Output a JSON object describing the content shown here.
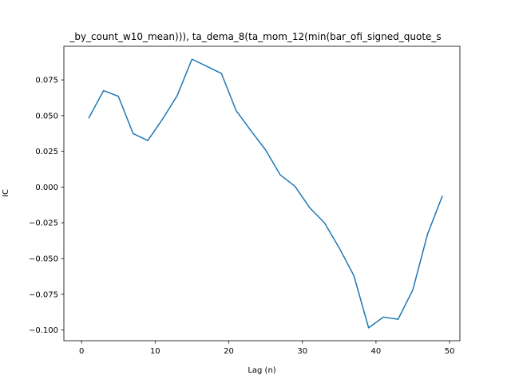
{
  "chart_data": {
    "type": "line",
    "title": "_by_count_w10_mean))), ta_dema_8(ta_mom_12(min(bar_ofi_signed_quote_s",
    "xlabel": "Lag (n)",
    "ylabel": "IC",
    "xlim": [
      -2.4,
      51.4
    ],
    "ylim": [
      -0.1075,
      0.0985
    ],
    "xticks": [
      0,
      10,
      20,
      30,
      40,
      50
    ],
    "yticks": [
      -0.1,
      -0.075,
      -0.05,
      -0.025,
      0.0,
      0.025,
      0.05,
      0.075
    ],
    "ytick_labels": [
      "−0.100",
      "−0.075",
      "−0.050",
      "−0.025",
      "0.000",
      "0.025",
      "0.050",
      "0.075"
    ],
    "grid": false,
    "series": [
      {
        "color": "#1f77b4",
        "x": [
          1,
          3,
          5,
          7,
          9,
          11,
          13,
          15,
          17,
          19,
          21,
          23,
          25,
          27,
          29,
          31,
          33,
          35,
          37,
          39,
          41,
          43,
          45,
          47,
          49
        ],
        "y": [
          0.0485,
          0.0675,
          0.0635,
          0.0375,
          0.0325,
          0.0475,
          0.064,
          0.0895,
          0.0845,
          0.0795,
          0.0535,
          0.0395,
          0.026,
          0.0085,
          0.0005,
          -0.0145,
          -0.025,
          -0.0425,
          -0.062,
          -0.0985,
          -0.091,
          -0.0925,
          -0.072,
          -0.033,
          -0.0065
        ]
      }
    ]
  }
}
